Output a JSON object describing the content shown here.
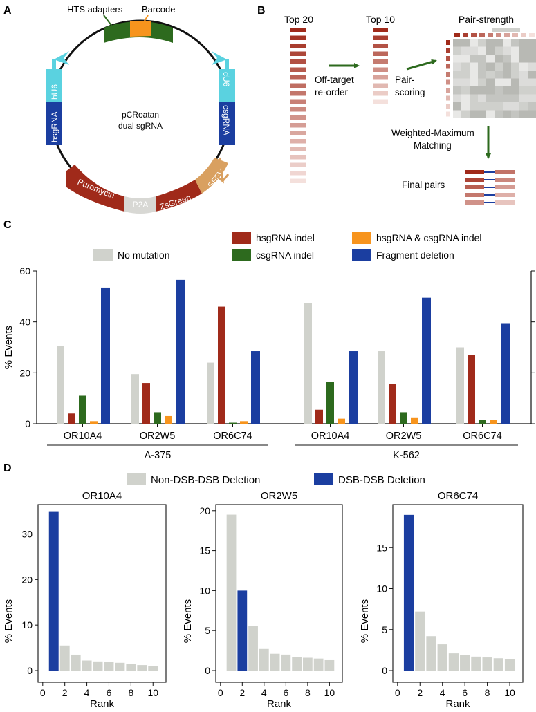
{
  "panel_a": {
    "letter": "A",
    "hts_label": "HTS adapters",
    "barcode_label": "Barcode",
    "plasmid_name_line1": "pCRoatan",
    "plasmid_name_line2": "dual sgRNA",
    "hU6": "hU6",
    "cU6": "cU6",
    "hsgRNA": "hsgRNA",
    "csgRNA": "csgRNA",
    "puromycin": "Puromycin",
    "p2a": "P2A",
    "zsgreen": "ZsGreen",
    "sffv": "SFFV",
    "colors": {
      "adapter": "#2d6a1e",
      "barcode": "#f7941d",
      "promoter": "#5ad2e0",
      "sgrna": "#1b3ea0",
      "resistance": "#a02a1a",
      "p2a": "#d8d8d4",
      "sffv": "#d9a060"
    }
  },
  "panel_b": {
    "letter": "B",
    "top20": "Top 20",
    "top10": "Top 10",
    "pair_strength": "Pair-strength",
    "offtarget_line1": "Off-target",
    "offtarget_line2": "re-order",
    "pair_line1": "Pair-",
    "pair_line2": "scoring",
    "wmm_line1": "Weighted-Maximum",
    "wmm_line2": "Matching",
    "final_pairs": "Final pairs",
    "arrow_color": "#2d6a1e"
  },
  "panel_c": {
    "letter": "C",
    "chart_data": {
      "type": "bar",
      "ylabel": "% Events",
      "ylim": [
        0,
        60
      ],
      "yticks": [
        0,
        20,
        40,
        60
      ],
      "groups": [
        {
          "name": "A-375",
          "categories": [
            "OR10A4",
            "OR2W5",
            "OR6C74"
          ]
        },
        {
          "name": "K-562",
          "categories": [
            "OR10A4",
            "OR2W5",
            "OR6C74"
          ]
        }
      ],
      "series": [
        {
          "name": "No mutation",
          "color": "#d0d2cc",
          "values": [
            30.5,
            19.5,
            24,
            47.5,
            28.5,
            30
          ]
        },
        {
          "name": "hsgRNA indel",
          "color": "#a02a1a",
          "values": [
            4,
            16,
            46,
            5.5,
            15.5,
            27
          ]
        },
        {
          "name": "csgRNA indel",
          "color": "#2d6a1e",
          "values": [
            11,
            4.5,
            0.4,
            16.5,
            4.5,
            1.5
          ]
        },
        {
          "name": "hsgRNA & csgRNA indel",
          "color": "#f7941d",
          "values": [
            1,
            3,
            1,
            2,
            2.5,
            1.5
          ]
        },
        {
          "name": "Fragment deletion",
          "color": "#1b3ea0",
          "values": [
            53.5,
            56.5,
            28.5,
            28.5,
            49.5,
            39.5
          ]
        }
      ]
    }
  },
  "panel_d": {
    "letter": "D",
    "legend": [
      {
        "name": "Non-DSB-DSB Deletion",
        "color": "#d0d2cc"
      },
      {
        "name": "DSB-DSB Deletion",
        "color": "#1b3ea0"
      }
    ],
    "chart_data": [
      {
        "type": "bar",
        "title": "OR10A4",
        "xlabel": "Rank",
        "ylabel": "% Events",
        "x": [
          1,
          2,
          3,
          4,
          5,
          6,
          7,
          8,
          9,
          10
        ],
        "values": [
          35,
          5.5,
          3.5,
          2.2,
          2.0,
          1.9,
          1.7,
          1.5,
          1.2,
          1.0
        ],
        "highlight_rank": 1,
        "ylim": [
          0,
          36
        ],
        "yticks": [
          0,
          10,
          20,
          30
        ],
        "xticks": [
          0,
          2,
          4,
          6,
          8,
          10
        ]
      },
      {
        "type": "bar",
        "title": "OR2W5",
        "xlabel": "Rank",
        "ylabel": "% Events",
        "x": [
          1,
          2,
          3,
          4,
          5,
          6,
          7,
          8,
          9,
          10
        ],
        "values": [
          19.5,
          10,
          5.6,
          2.7,
          2.1,
          2.0,
          1.7,
          1.6,
          1.5,
          1.3
        ],
        "highlight_rank": 2,
        "ylim": [
          0,
          20.5
        ],
        "yticks": [
          0,
          5,
          10,
          15,
          20
        ],
        "xticks": [
          0,
          2,
          4,
          6,
          8,
          10
        ]
      },
      {
        "type": "bar",
        "title": "OR6C74",
        "xlabel": "Rank",
        "ylabel": "% Events",
        "x": [
          1,
          2,
          3,
          4,
          5,
          6,
          7,
          8,
          9,
          10
        ],
        "values": [
          19,
          7.2,
          4.2,
          3.2,
          2.1,
          1.9,
          1.7,
          1.6,
          1.5,
          1.4
        ],
        "highlight_rank": 1,
        "ylim": [
          0,
          20
        ],
        "yticks": [
          0,
          5,
          10,
          15
        ],
        "xticks": [
          0,
          2,
          4,
          6,
          8,
          10
        ]
      }
    ]
  }
}
